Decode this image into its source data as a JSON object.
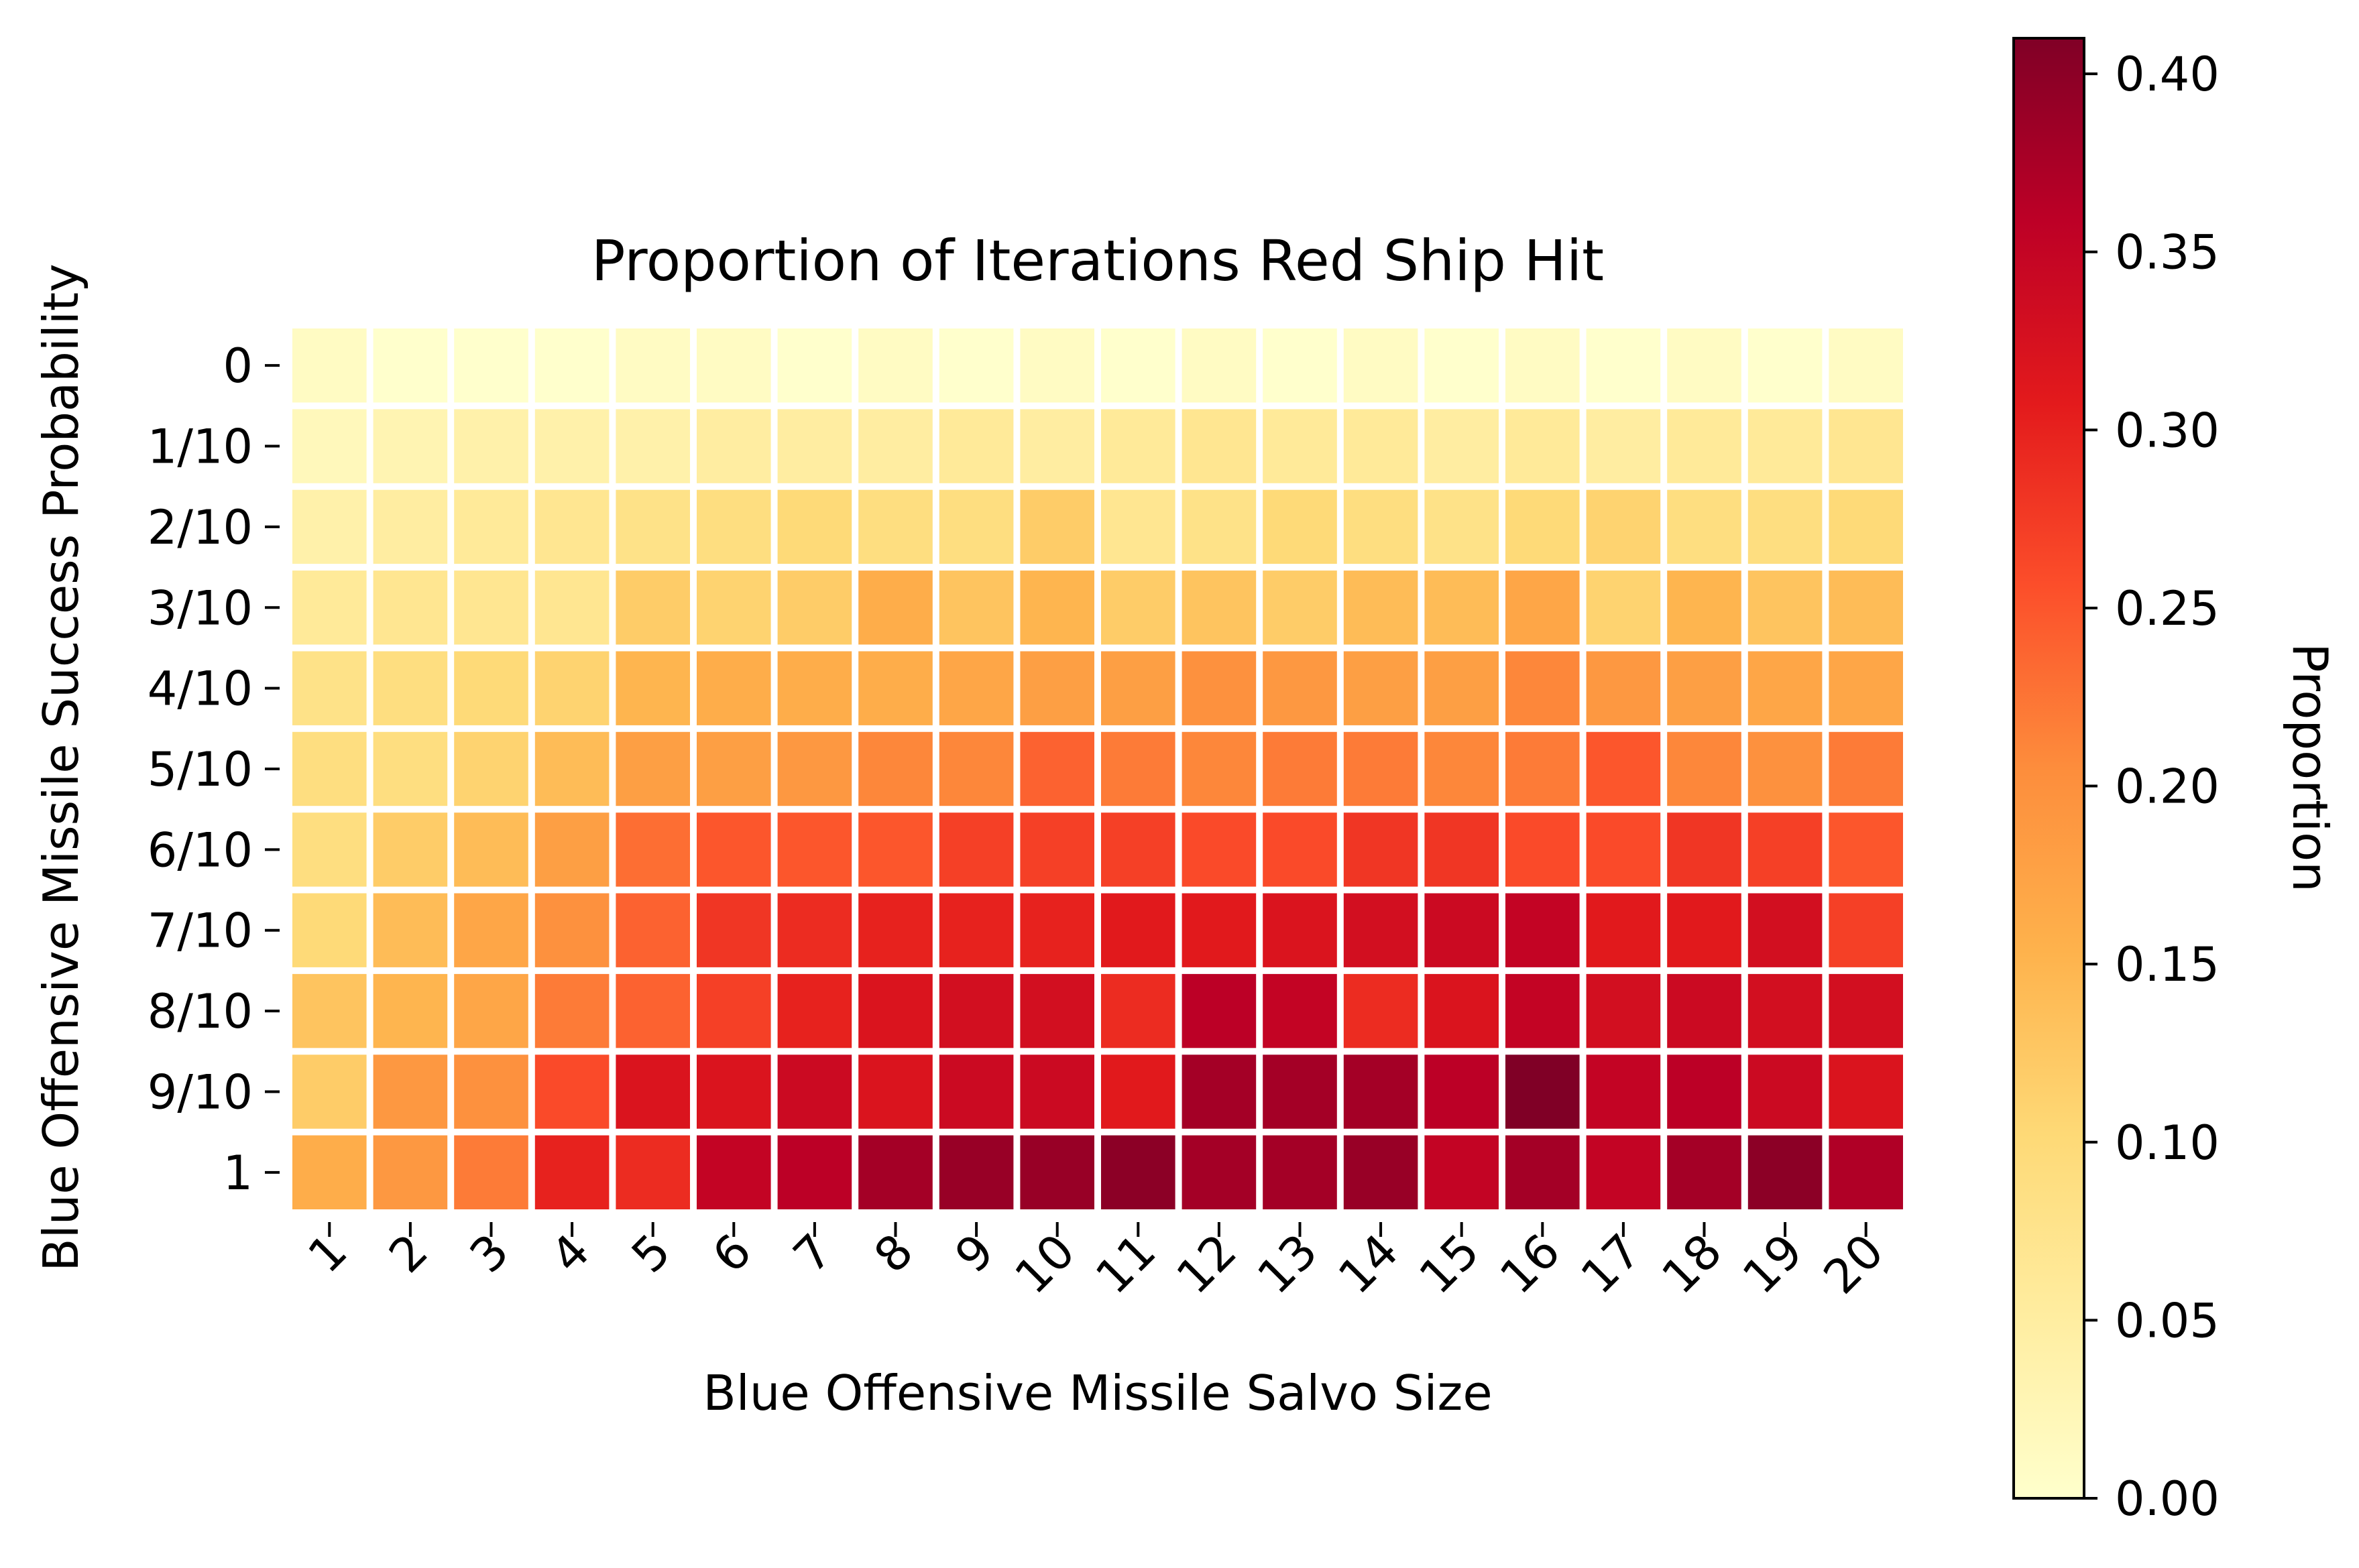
{
  "chart_data": {
    "type": "heatmap",
    "title": "Proportion of Iterations Red Ship Hit",
    "xlabel": "Blue Offensive Missile Salvo Size",
    "ylabel": "Blue Offensive Missile Success Probability",
    "x_categories": [
      "1",
      "2",
      "3",
      "4",
      "5",
      "6",
      "7",
      "8",
      "9",
      "10",
      "11",
      "12",
      "13",
      "14",
      "15",
      "16",
      "17",
      "18",
      "19",
      "20"
    ],
    "y_categories": [
      "0",
      "1/10",
      "2/10",
      "3/10",
      "4/10",
      "5/10",
      "6/10",
      "7/10",
      "8/10",
      "9/10",
      "1"
    ],
    "values": [
      [
        0.01,
        0.0,
        0.0,
        0.0,
        0.01,
        0.01,
        0.0,
        0.01,
        0.0,
        0.01,
        0.0,
        0.01,
        0.0,
        0.01,
        0.0,
        0.01,
        0.0,
        0.01,
        0.0,
        0.01
      ],
      [
        0.02,
        0.03,
        0.04,
        0.04,
        0.04,
        0.05,
        0.05,
        0.05,
        0.06,
        0.05,
        0.06,
        0.07,
        0.06,
        0.06,
        0.05,
        0.06,
        0.05,
        0.06,
        0.06,
        0.07
      ],
      [
        0.04,
        0.05,
        0.06,
        0.07,
        0.08,
        0.09,
        0.1,
        0.09,
        0.09,
        0.12,
        0.07,
        0.08,
        0.1,
        0.09,
        0.08,
        0.1,
        0.11,
        0.09,
        0.09,
        0.1
      ],
      [
        0.06,
        0.07,
        0.07,
        0.07,
        0.12,
        0.11,
        0.12,
        0.16,
        0.13,
        0.15,
        0.12,
        0.13,
        0.12,
        0.14,
        0.14,
        0.17,
        0.11,
        0.15,
        0.13,
        0.14
      ],
      [
        0.08,
        0.09,
        0.1,
        0.11,
        0.15,
        0.16,
        0.16,
        0.16,
        0.17,
        0.18,
        0.18,
        0.2,
        0.19,
        0.18,
        0.18,
        0.21,
        0.19,
        0.18,
        0.17,
        0.17
      ],
      [
        0.09,
        0.09,
        0.11,
        0.14,
        0.18,
        0.18,
        0.19,
        0.21,
        0.21,
        0.24,
        0.22,
        0.21,
        0.22,
        0.22,
        0.21,
        0.22,
        0.25,
        0.21,
        0.2,
        0.22
      ],
      [
        0.09,
        0.12,
        0.14,
        0.18,
        0.23,
        0.25,
        0.25,
        0.25,
        0.27,
        0.27,
        0.27,
        0.26,
        0.26,
        0.28,
        0.28,
        0.26,
        0.26,
        0.28,
        0.27,
        0.25
      ],
      [
        0.1,
        0.14,
        0.17,
        0.2,
        0.24,
        0.28,
        0.29,
        0.3,
        0.3,
        0.3,
        0.31,
        0.31,
        0.32,
        0.33,
        0.34,
        0.35,
        0.31,
        0.31,
        0.33,
        0.27
      ],
      [
        0.13,
        0.15,
        0.17,
        0.22,
        0.24,
        0.27,
        0.3,
        0.32,
        0.33,
        0.33,
        0.29,
        0.36,
        0.35,
        0.29,
        0.32,
        0.35,
        0.33,
        0.34,
        0.33,
        0.33
      ],
      [
        0.12,
        0.19,
        0.2,
        0.26,
        0.32,
        0.32,
        0.34,
        0.32,
        0.34,
        0.34,
        0.31,
        0.38,
        0.38,
        0.38,
        0.36,
        0.41,
        0.35,
        0.36,
        0.34,
        0.32
      ],
      [
        0.16,
        0.19,
        0.22,
        0.3,
        0.29,
        0.35,
        0.36,
        0.38,
        0.39,
        0.39,
        0.4,
        0.38,
        0.38,
        0.39,
        0.35,
        0.38,
        0.35,
        0.38,
        0.4,
        0.37
      ]
    ],
    "colormap": "YlOrRd",
    "vmin": 0.0,
    "vmax": 0.41,
    "colorbar": {
      "label": "Proportion",
      "ticks": [
        "0.00",
        "0.05",
        "0.10",
        "0.15",
        "0.20",
        "0.25",
        "0.30",
        "0.35",
        "0.40"
      ],
      "tick_values": [
        0.0,
        0.05,
        0.1,
        0.15,
        0.2,
        0.25,
        0.3,
        0.35,
        0.4
      ]
    },
    "grid": false,
    "legend": "none"
  }
}
